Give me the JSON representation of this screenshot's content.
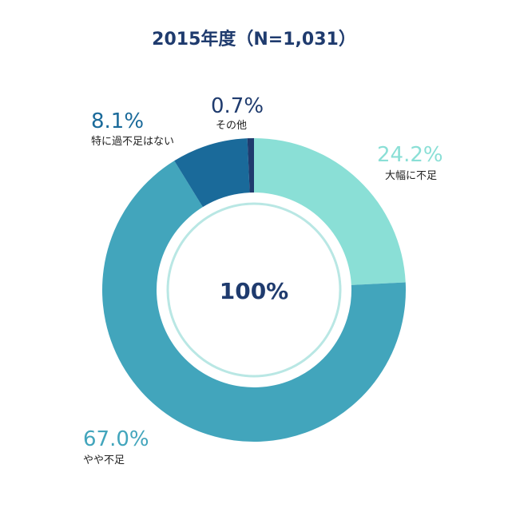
{
  "chart_data": {
    "type": "pie",
    "title": "2015年度（N=1,031）",
    "center_label": "100%",
    "slices": [
      {
        "label": "大幅に不足",
        "value": 24.2,
        "value_label": "24.2%",
        "color": "#8adfd6",
        "label_color": "#8adfd6"
      },
      {
        "label": "やや不足",
        "value": 67.0,
        "value_label": "67.0%",
        "color": "#42a5bc",
        "label_color": "#42a5bc"
      },
      {
        "label": "特に過不足はない",
        "value": 8.1,
        "value_label": "8.1%",
        "color": "#1a6a9a",
        "label_color": "#1a6a9a"
      },
      {
        "label": "その他",
        "value": 0.7,
        "value_label": "0.7%",
        "color": "#1f3b6e",
        "label_color": "#1f3b6e"
      }
    ],
    "start_angle_deg": 0,
    "direction": "clockwise",
    "inner_ring_color": "#b9e7e4"
  }
}
